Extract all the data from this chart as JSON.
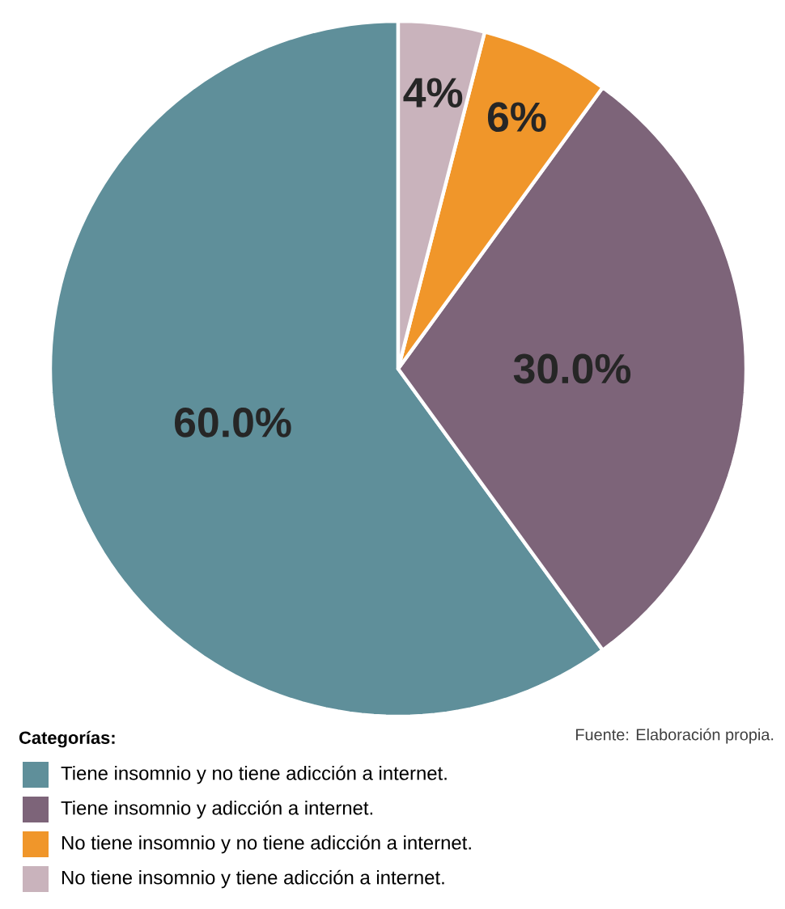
{
  "chart_data": {
    "type": "pie",
    "categories": [
      "Tiene insomnio y no tiene adicción a internet.",
      "Tiene insomnio y adicción a internet.",
      "No tiene insomnio y no tiene adicción a internet.",
      "No tiene insomnio y tiene adicción a internet."
    ],
    "values": [
      60,
      30,
      6,
      4
    ],
    "colors": [
      "#5f8f9a",
      "#7d6479",
      "#f0962a",
      "#c9b3bc"
    ],
    "value_labels": [
      "60.0%",
      "30.0%",
      "6%",
      "4%"
    ],
    "legend_title": "Categorías:",
    "legend": "bottom",
    "annotations": [
      "Fuente: Elaboración propia."
    ]
  }
}
